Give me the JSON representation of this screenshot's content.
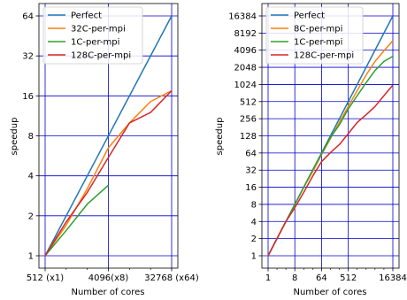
{
  "colors": {
    "perfect": "#1f77b4",
    "orange": "#ff7f0e",
    "green": "#2ca02c",
    "red": "#d62728",
    "grid": "#0000cc"
  },
  "chart_data": [
    {
      "type": "line",
      "xscale": "log2",
      "yscale": "log2",
      "xlim": [
        512,
        32768
      ],
      "ylim": [
        1,
        64
      ],
      "xlabel": "Number of cores",
      "ylabel": "speedup",
      "grid": true,
      "legend_position": "top-left",
      "x_ticks": [
        {
          "value": 512,
          "label": "512 (x1)"
        },
        {
          "value": 4096,
          "label": "4096(x8)"
        },
        {
          "value": 32768,
          "label": "32768 (x64)"
        }
      ],
      "y_ticks": [
        {
          "value": 1,
          "label": "1"
        },
        {
          "value": 2,
          "label": "2"
        },
        {
          "value": 4,
          "label": "4"
        },
        {
          "value": 8,
          "label": "8"
        },
        {
          "value": 16,
          "label": "16"
        },
        {
          "value": 32,
          "label": "32"
        },
        {
          "value": 64,
          "label": "64"
        }
      ],
      "series": [
        {
          "name": "Perfect",
          "color": "#1f77b4",
          "x": [
            512,
            32768
          ],
          "y": [
            1,
            64
          ]
        },
        {
          "name": "32C-per-mpi",
          "color": "#ff7f0e",
          "x": [
            512,
            1024,
            2048,
            4096,
            8192,
            16384,
            32768
          ],
          "y": [
            1,
            1.7,
            3.2,
            6.5,
            10,
            14.5,
            17.5
          ]
        },
        {
          "name": "1C-per-mpi",
          "color": "#2ca02c",
          "x": [
            512,
            1024,
            2048,
            4096
          ],
          "y": [
            1,
            1.55,
            2.45,
            3.4
          ]
        },
        {
          "name": "128C-per-mpi",
          "color": "#d62728",
          "x": [
            512,
            1024,
            2048,
            4096,
            8192,
            16384,
            32768
          ],
          "y": [
            1,
            1.8,
            3.0,
            5.5,
            10,
            12,
            17.5
          ]
        }
      ]
    },
    {
      "type": "line",
      "xscale": "log2",
      "yscale": "log2",
      "xlim": [
        1,
        16384
      ],
      "ylim": [
        1,
        16384
      ],
      "xlabel": "Number of cores",
      "ylabel": "speedup",
      "grid": true,
      "legend_position": "top-left",
      "x_ticks": [
        {
          "value": 1,
          "label": "1"
        },
        {
          "value": 8,
          "label": "8"
        },
        {
          "value": 64,
          "label": "64"
        },
        {
          "value": 512,
          "label": "512"
        },
        {
          "value": 16384,
          "label": "16384"
        }
      ],
      "y_ticks": [
        {
          "value": 1,
          "label": "1"
        },
        {
          "value": 2,
          "label": "2"
        },
        {
          "value": 4,
          "label": "4"
        },
        {
          "value": 8,
          "label": "8"
        },
        {
          "value": 16,
          "label": "16"
        },
        {
          "value": 32,
          "label": "32"
        },
        {
          "value": 64,
          "label": "64"
        },
        {
          "value": 128,
          "label": "128"
        },
        {
          "value": 256,
          "label": "256"
        },
        {
          "value": 512,
          "label": "512"
        },
        {
          "value": 1024,
          "label": "1024"
        },
        {
          "value": 2048,
          "label": "2048"
        },
        {
          "value": 4096,
          "label": "4096"
        },
        {
          "value": 8192,
          "label": "8192"
        },
        {
          "value": 16384,
          "label": "16384"
        }
      ],
      "series": [
        {
          "name": "Perfect",
          "color": "#1f77b4",
          "x": [
            1,
            16384
          ],
          "y": [
            1,
            16384
          ]
        },
        {
          "name": "8C-per-mpi",
          "color": "#ff7f0e",
          "x": [
            1,
            2,
            4,
            8,
            16,
            32,
            64,
            128,
            256,
            512,
            1024,
            2048,
            4096,
            8192,
            16384
          ],
          "y": [
            1,
            2,
            4,
            8,
            16,
            30,
            60,
            115,
            220,
            420,
            800,
            1500,
            2600,
            4000,
            6000
          ]
        },
        {
          "name": "1C-per-mpi",
          "color": "#2ca02c",
          "x": [
            1,
            2,
            4,
            8,
            16,
            32,
            64,
            128,
            256,
            512,
            1024,
            2048,
            4096,
            8192,
            16384
          ],
          "y": [
            1,
            2,
            4,
            8,
            16,
            32,
            62,
            120,
            200,
            380,
            650,
            1100,
            1800,
            2600,
            3200
          ]
        },
        {
          "name": "128C-per-mpi",
          "color": "#d62728",
          "x": [
            1,
            2,
            4,
            8,
            16,
            32,
            64,
            128,
            256,
            512,
            1024,
            2048,
            4096,
            8192,
            16384
          ],
          "y": [
            1,
            2,
            4,
            7,
            13,
            25,
            45,
            65,
            90,
            140,
            220,
            300,
            420,
            650,
            1000
          ]
        }
      ]
    }
  ]
}
